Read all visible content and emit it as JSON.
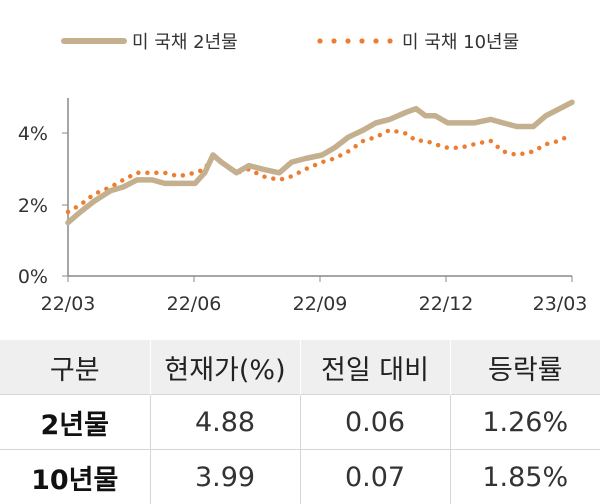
{
  "chart_data": {
    "type": "line",
    "x_ticks": [
      "22/03",
      "22/06",
      "22/09",
      "22/12",
      "23/03"
    ],
    "y_ticks": [
      "0%",
      "2%",
      "4%"
    ],
    "ylim": [
      0,
      5
    ],
    "legend_position": "top",
    "series": [
      {
        "name": "미 국채 2년물",
        "color": "#c4b08f",
        "style": "solid",
        "x": [
          "22/03/01",
          "22/03/10",
          "22/03/20",
          "22/04/01",
          "22/04/10",
          "22/04/20",
          "22/05/01",
          "22/05/10",
          "22/05/20",
          "22/06/01",
          "22/06/08",
          "22/06/14",
          "22/06/20",
          "22/07/01",
          "22/07/10",
          "22/07/20",
          "22/08/01",
          "22/08/10",
          "22/08/20",
          "22/09/01",
          "22/09/10",
          "22/09/20",
          "22/10/01",
          "22/10/10",
          "22/10/20",
          "22/11/01",
          "22/11/08",
          "22/11/15",
          "22/11/22",
          "22/12/01",
          "22/12/10",
          "22/12/20",
          "23/01/01",
          "23/01/10",
          "23/01/20",
          "23/02/01",
          "23/02/10",
          "23/02/20",
          "23/03/01"
        ],
        "values": [
          1.5,
          1.8,
          2.1,
          2.4,
          2.5,
          2.7,
          2.7,
          2.6,
          2.6,
          2.6,
          2.9,
          3.4,
          3.2,
          2.9,
          3.1,
          3.0,
          2.9,
          3.2,
          3.3,
          3.4,
          3.6,
          3.9,
          4.1,
          4.3,
          4.4,
          4.6,
          4.7,
          4.5,
          4.5,
          4.3,
          4.3,
          4.3,
          4.4,
          4.3,
          4.2,
          4.2,
          4.5,
          4.7,
          4.88
        ]
      },
      {
        "name": "미 국채 10년물",
        "color": "#ed7d31",
        "style": "dotted",
        "x": [
          "22/03/01",
          "22/03/10",
          "22/03/20",
          "22/04/01",
          "22/04/10",
          "22/04/20",
          "22/05/01",
          "22/05/10",
          "22/05/20",
          "22/06/01",
          "22/06/08",
          "22/06/14",
          "22/06/20",
          "22/07/01",
          "22/07/10",
          "22/07/20",
          "22/08/01",
          "22/08/10",
          "22/08/20",
          "22/09/01",
          "22/09/10",
          "22/09/20",
          "22/10/01",
          "22/10/10",
          "22/10/20",
          "22/11/01",
          "22/11/08",
          "22/11/15",
          "22/11/22",
          "22/12/01",
          "22/12/10",
          "22/12/20",
          "23/01/01",
          "23/01/10",
          "23/01/20",
          "23/02/01",
          "23/02/10",
          "23/02/20",
          "23/03/01"
        ],
        "values": [
          1.8,
          2.0,
          2.3,
          2.5,
          2.7,
          2.9,
          2.9,
          2.9,
          2.8,
          2.9,
          3.0,
          3.4,
          3.2,
          2.9,
          3.0,
          2.8,
          2.7,
          2.8,
          3.0,
          3.2,
          3.3,
          3.5,
          3.8,
          3.9,
          4.1,
          4.0,
          3.8,
          3.8,
          3.7,
          3.6,
          3.6,
          3.7,
          3.8,
          3.5,
          3.4,
          3.5,
          3.7,
          3.8,
          3.99
        ]
      }
    ]
  },
  "table": {
    "headers": [
      "구분",
      "현재가(%)",
      "전일 대비",
      "등락률"
    ],
    "rows": [
      [
        "2년물",
        "4.88",
        "0.06",
        "1.26%"
      ],
      [
        "10년물",
        "3.99",
        "0.07",
        "1.85%"
      ]
    ]
  }
}
